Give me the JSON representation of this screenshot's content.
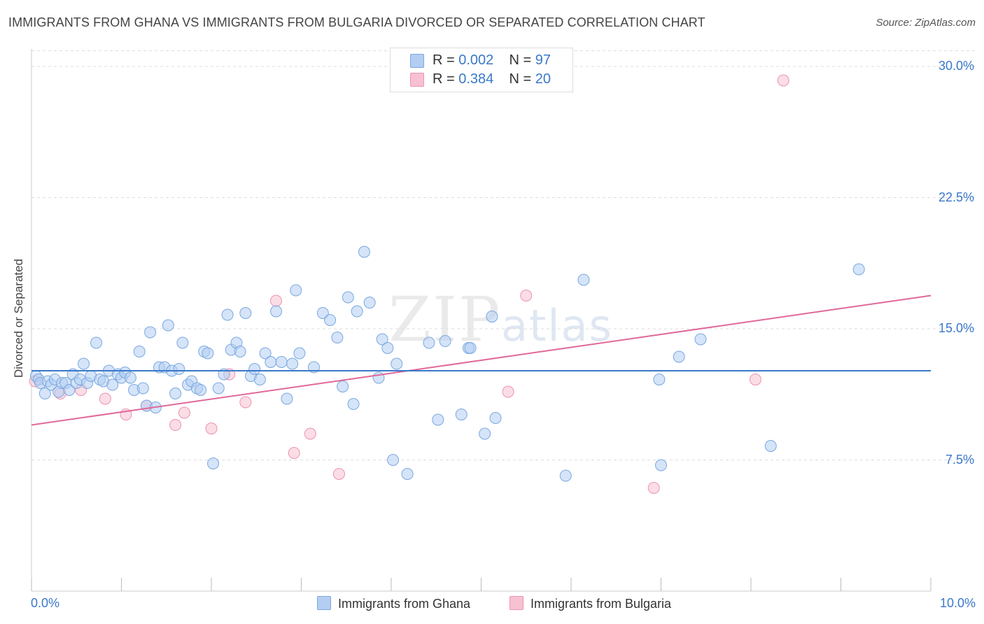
{
  "title": "IMMIGRANTS FROM GHANA VS IMMIGRANTS FROM BULGARIA DIVORCED OR SEPARATED CORRELATION CHART",
  "source": "Source: ZipAtlas.com",
  "watermark": {
    "zip": "ZIP",
    "atlas": "atlas"
  },
  "legend": {
    "ghana": {
      "r_label": "R =",
      "r_value": "0.002",
      "n_label": "N =",
      "n_value": "97"
    },
    "bulgaria": {
      "r_label": "R =",
      "r_value": "0.384",
      "n_label": "N =",
      "n_value": "20"
    }
  },
  "colors": {
    "ghana_fill": "#b3cef2",
    "ghana_stroke": "#7aa8e0",
    "ghana_line": "#3a78c9",
    "bulgaria_fill": "#f7c1d2",
    "bulgaria_stroke": "#ec93b0",
    "bulgaria_line": "#e0689a",
    "axis_label": "#3a78c9",
    "grid": "#dddddd"
  },
  "chart_data": {
    "type": "scatter",
    "title": "IMMIGRANTS FROM GHANA VS IMMIGRANTS FROM BULGARIA DIVORCED OR SEPARATED CORRELATION CHART",
    "xlabel": "",
    "ylabel": "Divorced or Separated",
    "xlim": [
      0,
      10
    ],
    "ylim": [
      0,
      31
    ],
    "x_tick_labels": [
      "0.0%",
      "10.0%"
    ],
    "y_ticks": [
      7.5,
      15.0,
      22.5,
      30.0
    ],
    "y_tick_labels": [
      "7.5%",
      "15.0%",
      "22.5%",
      "30.0%"
    ],
    "grid": true,
    "legend_position": "top-center",
    "series": [
      {
        "name": "Immigrants from Ghana",
        "R": 0.002,
        "N": 97,
        "trend": {
          "x": [
            0,
            10
          ],
          "y": [
            12.6,
            12.6
          ]
        },
        "points": [
          [
            0.05,
            12.3
          ],
          [
            0.08,
            12.1
          ],
          [
            0.1,
            11.9
          ],
          [
            0.15,
            11.3
          ],
          [
            0.18,
            12.0
          ],
          [
            0.22,
            11.8
          ],
          [
            0.26,
            12.1
          ],
          [
            0.3,
            11.4
          ],
          [
            0.34,
            11.9
          ],
          [
            0.38,
            11.9
          ],
          [
            0.42,
            11.5
          ],
          [
            0.46,
            12.4
          ],
          [
            0.5,
            11.9
          ],
          [
            0.54,
            12.1
          ],
          [
            0.58,
            13.0
          ],
          [
            0.62,
            11.9
          ],
          [
            0.66,
            12.3
          ],
          [
            0.72,
            14.2
          ],
          [
            0.76,
            12.1
          ],
          [
            0.8,
            12.0
          ],
          [
            0.86,
            12.6
          ],
          [
            0.9,
            11.8
          ],
          [
            0.96,
            12.4
          ],
          [
            1.0,
            12.2
          ],
          [
            1.04,
            12.5
          ],
          [
            1.1,
            12.2
          ],
          [
            1.14,
            11.5
          ],
          [
            1.2,
            13.7
          ],
          [
            1.24,
            11.6
          ],
          [
            1.28,
            10.6
          ],
          [
            1.32,
            14.8
          ],
          [
            1.38,
            10.5
          ],
          [
            1.42,
            12.8
          ],
          [
            1.48,
            12.8
          ],
          [
            1.52,
            15.2
          ],
          [
            1.56,
            12.6
          ],
          [
            1.6,
            11.3
          ],
          [
            1.64,
            12.7
          ],
          [
            1.68,
            14.2
          ],
          [
            1.74,
            11.8
          ],
          [
            1.78,
            12.0
          ],
          [
            1.84,
            11.6
          ],
          [
            1.88,
            11.5
          ],
          [
            1.92,
            13.7
          ],
          [
            1.96,
            13.6
          ],
          [
            2.02,
            7.3
          ],
          [
            2.08,
            11.6
          ],
          [
            2.14,
            12.4
          ],
          [
            2.18,
            15.8
          ],
          [
            2.22,
            13.8
          ],
          [
            2.28,
            14.2
          ],
          [
            2.32,
            13.7
          ],
          [
            2.38,
            15.9
          ],
          [
            2.44,
            12.3
          ],
          [
            2.48,
            12.7
          ],
          [
            2.54,
            12.1
          ],
          [
            2.6,
            13.6
          ],
          [
            2.66,
            13.1
          ],
          [
            2.72,
            16.0
          ],
          [
            2.78,
            13.1
          ],
          [
            2.84,
            11.0
          ],
          [
            2.9,
            13.0
          ],
          [
            2.94,
            17.2
          ],
          [
            2.98,
            13.6
          ],
          [
            3.14,
            12.8
          ],
          [
            3.24,
            15.9
          ],
          [
            3.32,
            15.5
          ],
          [
            3.4,
            14.5
          ],
          [
            3.46,
            11.7
          ],
          [
            3.52,
            16.8
          ],
          [
            3.58,
            10.7
          ],
          [
            3.62,
            16.0
          ],
          [
            3.7,
            19.4
          ],
          [
            3.76,
            16.5
          ],
          [
            3.86,
            12.2
          ],
          [
            3.9,
            14.4
          ],
          [
            3.96,
            13.9
          ],
          [
            4.02,
            7.5
          ],
          [
            4.06,
            13.0
          ],
          [
            4.18,
            6.7
          ],
          [
            4.42,
            14.2
          ],
          [
            4.52,
            9.8
          ],
          [
            4.6,
            14.3
          ],
          [
            4.78,
            10.1
          ],
          [
            4.86,
            13.9
          ],
          [
            4.88,
            13.9
          ],
          [
            5.04,
            9.0
          ],
          [
            5.12,
            15.7
          ],
          [
            5.16,
            9.9
          ],
          [
            5.94,
            6.6
          ],
          [
            6.14,
            17.8
          ],
          [
            6.98,
            12.1
          ],
          [
            7.0,
            7.2
          ],
          [
            7.2,
            13.4
          ],
          [
            7.44,
            14.4
          ],
          [
            8.22,
            8.3
          ],
          [
            9.2,
            18.4
          ]
        ]
      },
      {
        "name": "Immigrants from Bulgaria",
        "R": 0.384,
        "N": 20,
        "trend": {
          "x": [
            0,
            10
          ],
          "y": [
            9.5,
            16.9
          ]
        },
        "points": [
          [
            0.04,
            12.0
          ],
          [
            0.32,
            11.3
          ],
          [
            0.55,
            11.5
          ],
          [
            0.82,
            11.0
          ],
          [
            1.05,
            10.1
          ],
          [
            1.28,
            10.6
          ],
          [
            1.6,
            9.5
          ],
          [
            1.7,
            10.2
          ],
          [
            2.0,
            9.3
          ],
          [
            2.2,
            12.4
          ],
          [
            2.38,
            10.8
          ],
          [
            2.72,
            16.6
          ],
          [
            2.92,
            7.9
          ],
          [
            3.1,
            9.0
          ],
          [
            3.42,
            6.7
          ],
          [
            5.3,
            11.4
          ],
          [
            5.5,
            16.9
          ],
          [
            6.92,
            5.9
          ],
          [
            8.05,
            12.1
          ],
          [
            8.36,
            29.2
          ]
        ]
      }
    ]
  },
  "bottom_legend": {
    "ghana": "Immigrants from Ghana",
    "bulgaria": "Immigrants from Bulgaria"
  }
}
